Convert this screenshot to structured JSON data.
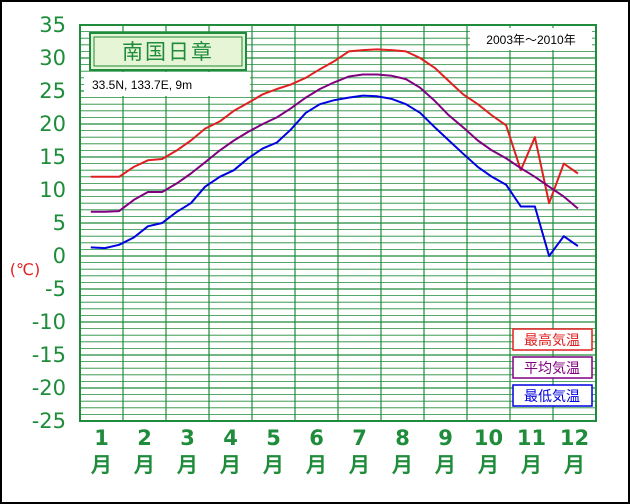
{
  "station": {
    "name": "南国日章",
    "location": "33.5N,  133.7E,  9m",
    "period": "2003年～2010年"
  },
  "colors": {
    "grid": "#1e8c3a",
    "max": "#e02020",
    "mean": "#800080",
    "min": "#0000e0",
    "title_bg": "#e6f5d6"
  },
  "chart_data": {
    "type": "line",
    "ylim": [
      -25,
      35
    ],
    "yticks": [
      "35",
      "30",
      "25",
      "20",
      "15",
      "10",
      "5",
      "0",
      "-5",
      "-10",
      "-15",
      "-20",
      "-25"
    ],
    "unit_label": "(℃)",
    "month_numbers": [
      "1",
      "2",
      "3",
      "4",
      "5",
      "6",
      "7",
      "8",
      "9",
      "10",
      "11",
      "12"
    ],
    "month_suffix": "月",
    "x": [
      1.0,
      1.33,
      1.66,
      2.0,
      2.33,
      2.66,
      3.0,
      3.33,
      3.66,
      4.0,
      4.33,
      4.66,
      5.0,
      5.33,
      5.66,
      6.0,
      6.33,
      6.66,
      7.0,
      7.33,
      7.66,
      8.0,
      8.33,
      8.66,
      9.0,
      9.33,
      9.66,
      10.0,
      10.33,
      10.66,
      11.0,
      11.33,
      11.66,
      12.0,
      12.33
    ],
    "series": [
      {
        "name": "最高気温",
        "color": "#e02020",
        "values": [
          12.0,
          12.0,
          12.0,
          13.5,
          14.5,
          14.7,
          16.0,
          17.5,
          19.3,
          20.4,
          22.0,
          23.2,
          24.5,
          25.3,
          26.0,
          27.0,
          28.3,
          29.5,
          31.0,
          31.2,
          31.3,
          31.2,
          31.0,
          30.0,
          28.5,
          26.5,
          24.5,
          23.0,
          21.3,
          19.8,
          13.0,
          18.0,
          8.0,
          14.0,
          12.5
        ]
      },
      {
        "name": "平均気温",
        "color": "#800080",
        "values": [
          6.7,
          6.7,
          6.8,
          8.5,
          9.7,
          9.7,
          11.0,
          12.5,
          14.2,
          16.0,
          17.5,
          18.8,
          20.0,
          21.0,
          22.4,
          24.0,
          25.3,
          26.3,
          27.2,
          27.5,
          27.5,
          27.3,
          26.8,
          25.5,
          23.5,
          21.3,
          19.5,
          17.5,
          16.0,
          14.8,
          13.3,
          12.0,
          10.5,
          9.0,
          7.2
        ]
      },
      {
        "name": "最低気温",
        "color": "#0000e0",
        "values": [
          1.3,
          1.2,
          1.7,
          2.8,
          4.5,
          5.0,
          6.7,
          8.0,
          10.5,
          12.0,
          13.0,
          14.8,
          16.3,
          17.2,
          19.2,
          21.7,
          23.0,
          23.6,
          24.0,
          24.3,
          24.2,
          23.8,
          23.0,
          21.7,
          19.5,
          17.5,
          15.5,
          13.5,
          12.0,
          10.8,
          7.5,
          7.5,
          0.0,
          3.0,
          1.5
        ]
      }
    ]
  }
}
